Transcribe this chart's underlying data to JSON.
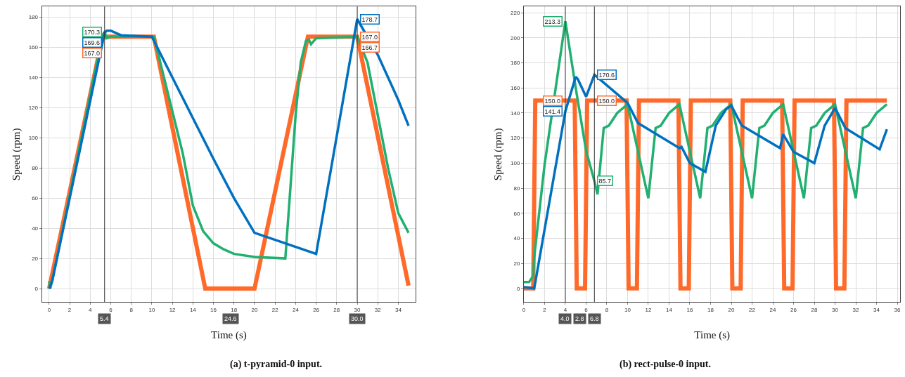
{
  "chart_data": [
    {
      "type": "line",
      "title": "(a) t-pyramid-0 input.",
      "xlabel": "Time (s)",
      "ylabel": "Speed (rpm)",
      "xlim": [
        -0.7,
        35.7
      ],
      "ylim": [
        -9,
        187
      ],
      "xticks": [
        0,
        2,
        4,
        6,
        8,
        10,
        12,
        14,
        16,
        18,
        20,
        22,
        24,
        26,
        28,
        30,
        32,
        34
      ],
      "yticks": [
        0,
        20,
        40,
        60,
        80,
        100,
        120,
        140,
        160,
        180
      ],
      "grid": true,
      "marker": "none",
      "line_style": "solid",
      "series": [
        {
          "color": "#ff6a2a",
          "x": [
            0,
            5.2,
            10.2,
            15.2,
            20,
            25.2,
            30,
            35
          ],
          "values": [
            0,
            167,
            167,
            0,
            0,
            167,
            167,
            2
          ]
        },
        {
          "color": "#20b070",
          "x": [
            0,
            0.1,
            0.3,
            5.2,
            5.4,
            5.6,
            6,
            10.2,
            13,
            14,
            15,
            16,
            17,
            18,
            20,
            23,
            24,
            24.5,
            25,
            25.3,
            25.5,
            26,
            30,
            31,
            33,
            34,
            35
          ],
          "values": [
            5,
            0,
            5,
            168,
            170.3,
            166,
            167,
            167,
            90,
            55,
            38,
            30,
            26,
            23,
            21,
            20,
            115,
            150,
            164,
            165,
            162,
            166,
            167,
            150,
            80,
            50,
            37
          ]
        },
        {
          "color": "#0070c0",
          "x": [
            0,
            0.3,
            5.4,
            5.6,
            6,
            7,
            10,
            12,
            14,
            16,
            18,
            20,
            26,
            30,
            32,
            34,
            35
          ],
          "values": [
            0,
            5,
            169.6,
            171,
            171,
            168,
            167,
            140,
            113,
            86,
            60,
            37,
            23,
            178.7,
            155,
            125,
            108
          ]
        }
      ],
      "ref_lines": [
        {
          "axis": "x",
          "value": 5.4,
          "label": "5.4"
        },
        {
          "axis": "x",
          "value": 30.0,
          "label": "30.0"
        }
      ],
      "annotations": [
        {
          "text": "170.3",
          "x": 5.4,
          "y": 170.3
        },
        {
          "text": "169.6",
          "x": 5.4,
          "y": 169.6
        },
        {
          "text": "167.0",
          "x": 5.4,
          "y": 167.0
        },
        {
          "text": "178.7",
          "x": 30.0,
          "y": 178.7
        },
        {
          "text": "167.0",
          "x": 30.0,
          "y": 167.0
        },
        {
          "text": "166.7",
          "x": 30.0,
          "y": 166.7
        },
        "24.6"
      ]
    },
    {
      "type": "line",
      "title": "(b) rect-pulse-0 input.",
      "xlabel": "Time (s)",
      "ylabel": "Speed (rpm)",
      "xlim": [
        0,
        36.3
      ],
      "ylim": [
        -11,
        225
      ],
      "xticks": [
        0,
        2,
        4,
        6,
        8,
        10,
        12,
        14,
        16,
        18,
        20,
        22,
        24,
        26,
        28,
        30,
        32,
        34,
        36
      ],
      "yticks": [
        0,
        20,
        40,
        60,
        80,
        100,
        120,
        140,
        160,
        180,
        200,
        220
      ],
      "grid": true,
      "marker": "none",
      "line_style": "solid",
      "series": [
        {
          "color": "#ff6a2a",
          "x": [
            0,
            0.9,
            1.1,
            4.9,
            5.1,
            5.9,
            6.1,
            9.9,
            10.1,
            10.9,
            11.1,
            14.9,
            15.1,
            15.9,
            16.1,
            19.9,
            20.1,
            20.9,
            21.1,
            24.9,
            25.1,
            25.9,
            26.1,
            29.9,
            30.1,
            30.9,
            31.1,
            35
          ],
          "values": [
            0,
            0,
            150,
            150,
            0,
            0,
            150,
            150,
            0,
            0,
            150,
            150,
            0,
            0,
            150,
            150,
            0,
            0,
            150,
            150,
            0,
            0,
            150,
            150,
            0,
            0,
            150,
            150
          ]
        },
        {
          "color": "#20b070",
          "x": [
            0,
            0.5,
            0.9,
            1,
            2,
            4,
            5,
            6,
            6.8,
            7.1,
            7.7,
            8.2,
            9,
            10,
            12,
            12.7,
            13.2,
            14,
            15,
            17,
            17.7,
            18.2,
            19,
            20,
            22,
            22.7,
            23.2,
            24,
            25,
            27,
            27.7,
            28.2,
            29,
            30,
            32,
            32.7,
            33.2,
            34,
            35
          ],
          "values": [
            5,
            5,
            10,
            25,
            99,
            213.3,
            160,
            110,
            85.7,
            75,
            128,
            130,
            140,
            147,
            72,
            128,
            130,
            140,
            147,
            72,
            128,
            130,
            140,
            147,
            72,
            128,
            130,
            140,
            147,
            72,
            128,
            130,
            140,
            147,
            72,
            128,
            130,
            140,
            147
          ]
        },
        {
          "color": "#0070c0",
          "x": [
            0,
            1,
            4,
            5,
            5.2,
            6,
            6.8,
            10,
            11,
            15,
            15.2,
            16,
            17.5,
            18.5,
            19.5,
            20,
            21,
            24.7,
            25,
            26,
            28,
            29,
            30,
            31,
            34.3,
            35
          ],
          "values": [
            1,
            0,
            141.4,
            169,
            167,
            153,
            170.6,
            148,
            132,
            112,
            113,
            100,
            93,
            130,
            143,
            146,
            130,
            112,
            123,
            109,
            100,
            130,
            144,
            128,
            111,
            127
          ]
        }
      ],
      "ref_lines": [
        {
          "axis": "x",
          "value": 4.0,
          "label": "4.0"
        },
        {
          "axis": "x",
          "value": 6.8,
          "label": "6.8"
        }
      ],
      "annotations": [
        {
          "text": "213.3",
          "x": 4.0,
          "y": 213.3
        },
        {
          "text": "150.0",
          "x": 4.0,
          "y": 150.0
        },
        {
          "text": "141.4",
          "x": 4.0,
          "y": 141.4
        },
        {
          "text": "170.6",
          "x": 6.8,
          "y": 170.6
        },
        {
          "text": "150.0",
          "x": 6.8,
          "y": 150.0
        },
        {
          "text": "85.7",
          "x": 6.8,
          "y": 85.7
        },
        "2.8"
      ]
    }
  ]
}
